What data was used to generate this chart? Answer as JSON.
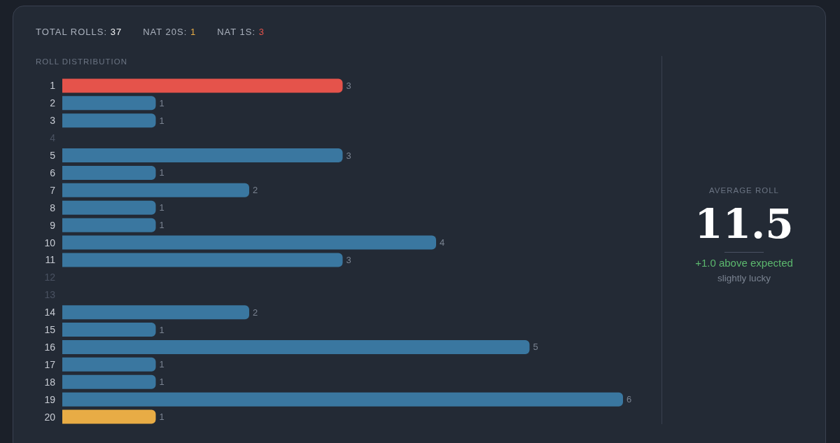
{
  "chart_data": [
    {
      "type": "bar",
      "orientation": "horizontal",
      "title": "ROLL DISTRIBUTION",
      "annotations": [
        "TOTAL ROLLS: 37",
        "NAT 20S: 1",
        "NAT 1S: 3"
      ],
      "categories": [
        "1",
        "2",
        "3",
        "4",
        "5",
        "6",
        "7",
        "8",
        "9",
        "10",
        "11",
        "12",
        "13",
        "14",
        "15",
        "16",
        "17",
        "18",
        "19",
        "20"
      ],
      "values": [
        3,
        1,
        1,
        0,
        3,
        1,
        2,
        1,
        1,
        4,
        3,
        0,
        0,
        2,
        1,
        5,
        1,
        1,
        6,
        1
      ],
      "value_labels": [
        "3",
        "1",
        "1",
        null,
        "3",
        "1",
        "2",
        "1",
        "1",
        "4",
        "3",
        null,
        null,
        "2",
        "1",
        "5",
        "1",
        "1",
        "6",
        "1"
      ],
      "colors": [
        "#e5534b",
        "#3a77a0",
        "#3a77a0",
        "#3a77a0",
        "#3a77a0",
        "#3a77a0",
        "#3a77a0",
        "#3a77a0",
        "#3a77a0",
        "#3a77a0",
        "#3a77a0",
        "#3a77a0",
        "#3a77a0",
        "#3a77a0",
        "#3a77a0",
        "#3a77a0",
        "#3a77a0",
        "#3a77a0",
        "#3a77a0",
        "#e8ac45"
      ]
    },
    {
      "type": "other",
      "title": "AVERAGE ROLL",
      "annotations": [
        "11.5",
        "+1.0 above expected",
        "slightly lucky"
      ]
    }
  ]
}
